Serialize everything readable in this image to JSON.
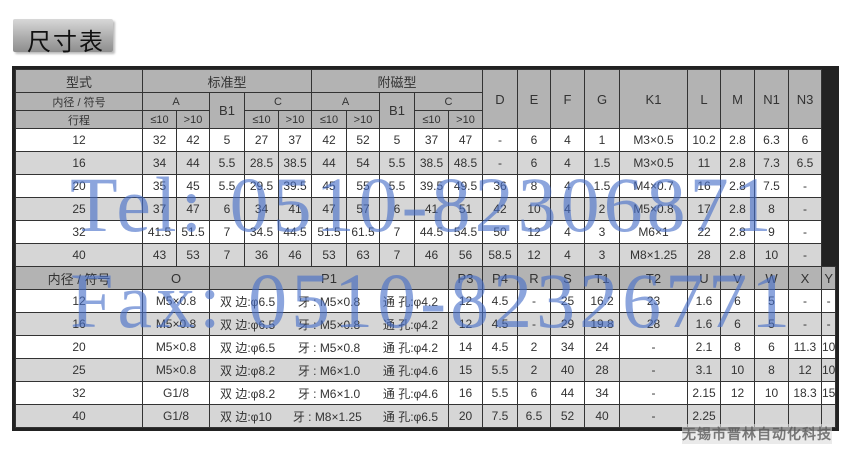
{
  "title": "尺寸表",
  "top": {
    "h_type": "型式",
    "h_std": "标准型",
    "h_mag": "附磁型",
    "h_bore": "内径 / 符号",
    "h_stroke": "行程",
    "h_A": "A",
    "h_B1": "B1",
    "h_C": "C",
    "h_le10": "≤10",
    "h_gt10": ">10",
    "cols": [
      "D",
      "E",
      "F",
      "G",
      "K1",
      "L",
      "M",
      "N1",
      "N3"
    ],
    "rows": [
      [
        "12",
        "32",
        "42",
        "5",
        "27",
        "37",
        "42",
        "52",
        "5",
        "37",
        "47",
        "-",
        "6",
        "4",
        "1",
        "M3×0.5",
        "10.2",
        "2.8",
        "6.3",
        "6"
      ],
      [
        "16",
        "34",
        "44",
        "5.5",
        "28.5",
        "38.5",
        "44",
        "54",
        "5.5",
        "38.5",
        "48.5",
        "-",
        "6",
        "4",
        "1.5",
        "M3×0.5",
        "11",
        "2.8",
        "7.3",
        "6.5"
      ],
      [
        "20",
        "35",
        "45",
        "5.5",
        "29.5",
        "39.5",
        "45",
        "55",
        "5.5",
        "39.5",
        "49.5",
        "36",
        "8",
        "4",
        "1.5",
        "M4×0.7",
        "16",
        "2.8",
        "7.5",
        "-"
      ],
      [
        "25",
        "37",
        "47",
        "6",
        "34",
        "41",
        "47",
        "57",
        "6",
        "41",
        "51",
        "42",
        "10",
        "4",
        "2",
        "M5×0.8",
        "17",
        "2.8",
        "8",
        "-"
      ],
      [
        "32",
        "41.5",
        "51.5",
        "7",
        "34.5",
        "44.5",
        "51.5",
        "61.5",
        "7",
        "44.5",
        "54.5",
        "50",
        "12",
        "4",
        "3",
        "M6×1",
        "22",
        "2.8",
        "9",
        "-"
      ],
      [
        "40",
        "43",
        "53",
        "7",
        "36",
        "46",
        "53",
        "63",
        "7",
        "46",
        "56",
        "58.5",
        "12",
        "4",
        "3",
        "M8×1.25",
        "28",
        "2.8",
        "10",
        "-"
      ]
    ]
  },
  "bottom": {
    "h_bore": "内径 / 符号",
    "h_O": "O",
    "h_P1": "P1",
    "cols": [
      "P3",
      "P4",
      "R",
      "S",
      "T1",
      "T2",
      "U",
      "V",
      "W",
      "X",
      "Y"
    ],
    "rows": [
      {
        "bore": "12",
        "O": "M5×0.8",
        "p1a": "双 边:φ6.5",
        "p1b": "牙 : M5×0.8",
        "p1c": "通 孔:φ4.2",
        "v": [
          "12",
          "4.5",
          "-",
          "25",
          "16.2",
          "23",
          "1.6",
          "6",
          "5",
          "-",
          "-"
        ]
      },
      {
        "bore": "16",
        "O": "M5×0.8",
        "p1a": "双 边:φ6.5",
        "p1b": "牙 : M5×0.8",
        "p1c": "通 孔:φ4.2",
        "v": [
          "12",
          "4.5",
          "-",
          "29",
          "19.8",
          "28",
          "1.6",
          "6",
          "5",
          "-",
          "-"
        ]
      },
      {
        "bore": "20",
        "O": "M5×0.8",
        "p1a": "双 边:φ6.5",
        "p1b": "牙 : M5×0.8",
        "p1c": "通 孔:φ4.2",
        "v": [
          "14",
          "4.5",
          "2",
          "34",
          "24",
          "-",
          "2.1",
          "8",
          "6",
          "11.3",
          "10"
        ]
      },
      {
        "bore": "25",
        "O": "M5×0.8",
        "p1a": "双 边:φ8.2",
        "p1b": "牙 : M6×1.0",
        "p1c": "通 孔:φ4.6",
        "v": [
          "15",
          "5.5",
          "2",
          "40",
          "28",
          "-",
          "3.1",
          "10",
          "8",
          "12",
          "10"
        ]
      },
      {
        "bore": "32",
        "O": "G1/8",
        "p1a": "双 边:φ8.2",
        "p1b": "牙 : M6×1.0",
        "p1c": "通 孔:φ4.6",
        "v": [
          "16",
          "5.5",
          "6",
          "44",
          "34",
          "-",
          "2.15",
          "12",
          "10",
          "18.3",
          "15"
        ]
      },
      {
        "bore": "40",
        "O": "G1/8",
        "p1a": "双 边:φ10",
        "p1b": "牙 : M8×1.25",
        "p1c": "通 孔:φ6.5",
        "v": [
          "20",
          "7.5",
          "6.5",
          "52",
          "40",
          "-",
          "2.25",
          "",
          "",
          "",
          ""
        ]
      }
    ]
  },
  "watermark": {
    "tel": "Tel: 0510-82306871",
    "fax": "Fax: 0510-82326771",
    "company": "无锡市晋林自动化科技"
  }
}
